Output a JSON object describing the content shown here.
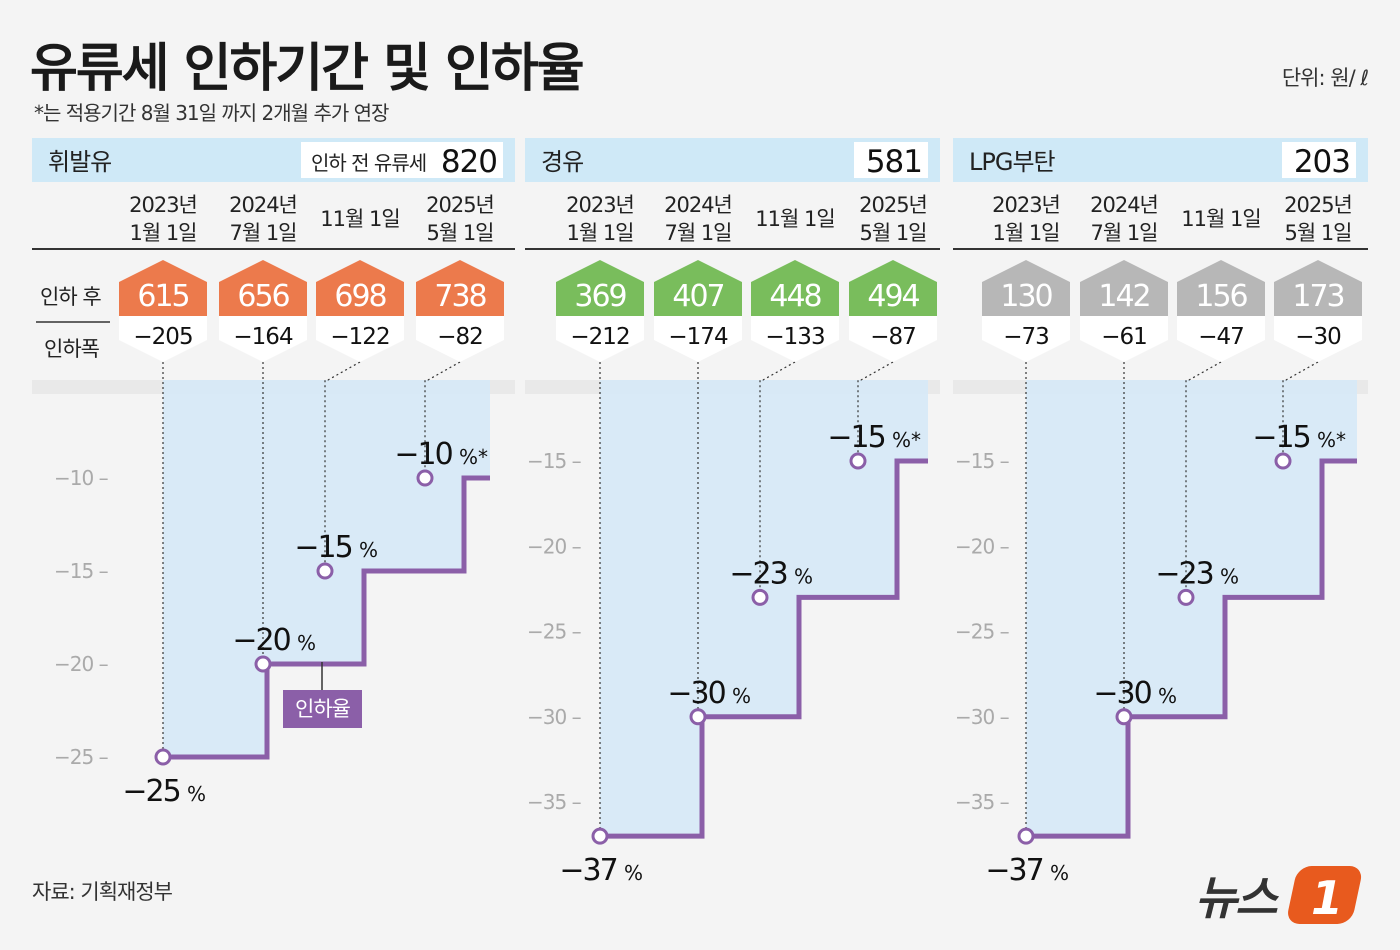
{
  "header": {
    "title": "유류세 인하기간 및 인하율",
    "subtitle": "*는 적용기간 8월 31일 까지 2개월 추가 연장",
    "unit": "단위: 원/ ℓ"
  },
  "footer": {
    "source": "자료: 기획재정부",
    "logo_text": "뉴스",
    "logo_number": "1"
  },
  "legend": {
    "row_after": "인하 후",
    "row_cut": "인하폭",
    "rate_label": "인하율"
  },
  "colors": {
    "gasoline": "#ec7a4c",
    "diesel": "#79bd5c",
    "lpg": "#b7b7b7",
    "step_line": "#8b5fa8",
    "header_band": "#cfe9f7",
    "fill": "#d6e9f7",
    "logo": "#e85a1e"
  },
  "chart_data": [
    {
      "type": "line",
      "fuel": "휘발유",
      "before_label": "인하 전 유류세",
      "before_tax": "820",
      "periods": [
        [
          "2023년",
          "1월 1일"
        ],
        [
          "2024년",
          "7월 1일"
        ],
        [
          "",
          "11월 1일"
        ],
        [
          "2025년",
          "5월 1일"
        ]
      ],
      "after_tax": [
        "615",
        "656",
        "698",
        "738"
      ],
      "cut": [
        "−205",
        "−164",
        "−122",
        "−82"
      ],
      "rates": [
        -25,
        -20,
        -15,
        -10
      ],
      "rate_labels": [
        "−25",
        "−20",
        "−15",
        "−10"
      ],
      "rate_suffix": [
        "%",
        "%",
        "%",
        "%*"
      ],
      "yticks": [
        -10,
        -15,
        -20,
        -25
      ],
      "ytick_labels": [
        "−10",
        "−15",
        "−20",
        "−25"
      ],
      "ylim": [
        -27,
        -7
      ]
    },
    {
      "type": "line",
      "fuel": "경유",
      "before_label": "",
      "before_tax": "581",
      "periods": [
        [
          "2023년",
          "1월 1일"
        ],
        [
          "2024년",
          "7월 1일"
        ],
        [
          "",
          "11월 1일"
        ],
        [
          "2025년",
          "5월 1일"
        ]
      ],
      "after_tax": [
        "369",
        "407",
        "448",
        "494"
      ],
      "cut": [
        "−212",
        "−174",
        "−133",
        "−87"
      ],
      "rates": [
        -37,
        -30,
        -23,
        -15
      ],
      "rate_labels": [
        "−37",
        "−30",
        "−23",
        "−15"
      ],
      "rate_suffix": [
        "%",
        "%",
        "%",
        "%*"
      ],
      "yticks": [
        -15,
        -20,
        -25,
        -30,
        -35
      ],
      "ytick_labels": [
        "−15",
        "−20",
        "−25",
        "−30",
        "−35"
      ],
      "ylim": [
        -38,
        -12
      ]
    },
    {
      "type": "line",
      "fuel": "LPG부탄",
      "before_label": "",
      "before_tax": "203",
      "periods": [
        [
          "2023년",
          "1월 1일"
        ],
        [
          "2024년",
          "7월 1일"
        ],
        [
          "",
          "11월 1일"
        ],
        [
          "2025년",
          "5월 1일"
        ]
      ],
      "after_tax": [
        "130",
        "142",
        "156",
        "173"
      ],
      "cut": [
        "−73",
        "−61",
        "−47",
        "−30"
      ],
      "rates": [
        -37,
        -30,
        -23,
        -15
      ],
      "rate_labels": [
        "−37",
        "−30",
        "−23",
        "−15"
      ],
      "rate_suffix": [
        "%",
        "%",
        "%",
        "%*"
      ],
      "yticks": [
        -15,
        -20,
        -25,
        -30,
        -35
      ],
      "ytick_labels": [
        "−15",
        "−20",
        "−25",
        "−30",
        "−35"
      ],
      "ylim": [
        -38,
        -12
      ]
    }
  ]
}
